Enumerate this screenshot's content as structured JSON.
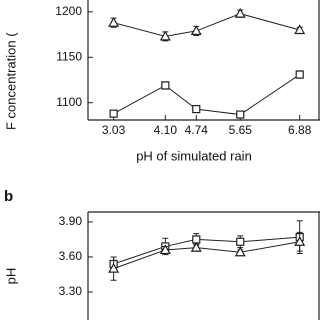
{
  "chart_data": [
    {
      "type": "line",
      "y_label": "F concentration (",
      "x_label": "pH of simulated rain",
      "x": [
        3.03,
        4.1,
        4.74,
        5.65,
        6.88
      ],
      "xlim": [
        2.5,
        7.3
      ],
      "xticks": [
        3.03,
        {
          "value": 4.1,
          "label": "4.10"
        },
        4.74,
        5.65,
        6.88
      ],
      "ylim": [
        1081,
        1213
      ],
      "yticks": [
        1100,
        1150,
        1200
      ],
      "series": [
        {
          "marker": "triangle",
          "color": "#222222",
          "values": [
            1188,
            1173,
            1179,
            1198,
            1180
          ],
          "errors": [
            5,
            5,
            5,
            4,
            3
          ]
        },
        {
          "marker": "square",
          "color": "#222222",
          "values": [
            1088,
            1119,
            1093,
            1087,
            1131
          ],
          "errors": [
            3,
            4,
            2,
            2,
            4
          ]
        }
      ]
    },
    {
      "type": "line",
      "panel_label": "b",
      "y_label": "pH",
      "x": [
        3.03,
        4.1,
        4.74,
        5.65,
        6.88
      ],
      "xlim": [
        2.5,
        7.3
      ],
      "ylim": [
        3.06,
        3.985
      ],
      "yticks": [
        {
          "value": 3.9,
          "label": "3.90"
        },
        {
          "value": 3.6,
          "label": "3.60"
        },
        {
          "value": 3.3,
          "label": "3.30"
        }
      ],
      "series": [
        {
          "marker": "square",
          "color": "#222222",
          "values": [
            3.54,
            3.69,
            3.75,
            3.73,
            3.77
          ],
          "errors": [
            0.06,
            0.07,
            0.05,
            0.05,
            0.14
          ]
        },
        {
          "marker": "triangle",
          "color": "#222222",
          "values": [
            3.5,
            3.66,
            3.68,
            3.64,
            3.73
          ],
          "errors": [
            0.1,
            0.03,
            0.03,
            0.02,
            0.08
          ]
        }
      ]
    }
  ]
}
